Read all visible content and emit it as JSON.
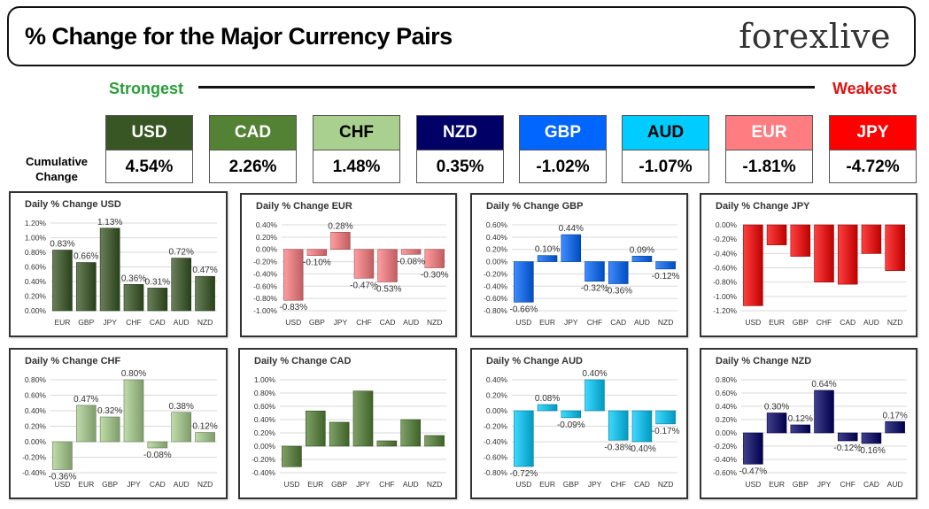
{
  "header": {
    "title": "% Change for the Major Currency Pairs",
    "logo": "forexlive"
  },
  "ranking": {
    "strongest_label": "Strongest",
    "weakest_label": "Weakest",
    "cumulative_label_line1": "Cumulative",
    "cumulative_label_line2": "Change",
    "cards": [
      {
        "currency": "USD",
        "value": "4.54%",
        "bg": "#375623",
        "fg": "#ffffff"
      },
      {
        "currency": "CAD",
        "value": "2.26%",
        "bg": "#548235",
        "fg": "#ffffff"
      },
      {
        "currency": "CHF",
        "value": "1.48%",
        "bg": "#a9d08e",
        "fg": "#000000"
      },
      {
        "currency": "NZD",
        "value": "0.35%",
        "bg": "#000066",
        "fg": "#ffffff"
      },
      {
        "currency": "GBP",
        "value": "-1.02%",
        "bg": "#0066ff",
        "fg": "#ffffff"
      },
      {
        "currency": "AUD",
        "value": "-1.07%",
        "bg": "#00ccff",
        "fg": "#000000"
      },
      {
        "currency": "EUR",
        "value": "-1.81%",
        "bg": "#ff7c80",
        "fg": "#ffffff"
      },
      {
        "currency": "JPY",
        "value": "-4.72%",
        "bg": "#ff0000",
        "fg": "#ffffff"
      }
    ]
  },
  "chart_data": [
    {
      "type": "bar",
      "title": "Daily % Change USD",
      "categories": [
        "EUR",
        "GBP",
        "JPY",
        "CHF",
        "CAD",
        "AUD",
        "NZD"
      ],
      "values": [
        0.83,
        0.66,
        1.13,
        0.36,
        0.31,
        0.72,
        0.47
      ],
      "labels": [
        "0.83%",
        "0.66%",
        "1.13%",
        "0.36%",
        "0.31%",
        "0.72%",
        "0.47%"
      ],
      "ylim": [
        0,
        1.2
      ],
      "yticks": [
        "0.00%",
        "0.20%",
        "0.40%",
        "0.60%",
        "0.80%",
        "1.00%",
        "1.20%"
      ],
      "color": "#375623"
    },
    {
      "type": "bar",
      "title": "Daily % Change EUR",
      "categories": [
        "USD",
        "GBP",
        "JPY",
        "CHF",
        "CAD",
        "AUD",
        "NZD"
      ],
      "values": [
        -0.83,
        -0.1,
        0.28,
        -0.47,
        -0.53,
        -0.08,
        -0.3
      ],
      "labels": [
        "-0.83%",
        "-0.10%",
        "0.28%",
        "-0.47%",
        "-0.53%",
        "-0.08%",
        "-0.30%"
      ],
      "ylim": [
        -1.0,
        0.4
      ],
      "yticks": [
        "-1.00%",
        "-0.80%",
        "-0.60%",
        "-0.40%",
        "-0.20%",
        "0.00%",
        "0.20%",
        "0.40%"
      ],
      "color": "#ff7c80"
    },
    {
      "type": "bar",
      "title": "Daily % Change GBP",
      "categories": [
        "USD",
        "EUR",
        "JPY",
        "CHF",
        "CAD",
        "AUD",
        "NZD"
      ],
      "values": [
        -0.66,
        0.1,
        0.44,
        -0.32,
        -0.36,
        0.09,
        -0.12
      ],
      "labels": [
        "-0.66%",
        "0.10%",
        "0.44%",
        "-0.32%",
        "-0.36%",
        "0.09%",
        "-0.12%"
      ],
      "ylim": [
        -0.8,
        0.6
      ],
      "yticks": [
        "-0.80%",
        "-0.60%",
        "-0.40%",
        "-0.20%",
        "0.00%",
        "0.20%",
        "0.40%",
        "0.60%"
      ],
      "color": "#0066ff"
    },
    {
      "type": "bar",
      "title": "Daily % Change JPY",
      "categories": [
        "USD",
        "EUR",
        "GBP",
        "CHF",
        "CAD",
        "AUD",
        "NZD"
      ],
      "values": [
        -1.13,
        -0.28,
        -0.44,
        -0.8,
        -0.83,
        -0.4,
        -0.64
      ],
      "labels": [],
      "ylim": [
        -1.2,
        0
      ],
      "yticks": [
        "-1.20%",
        "-1.00%",
        "-0.80%",
        "-0.60%",
        "-0.40%",
        "-0.20%",
        "0.00%"
      ],
      "color": "#ff0000"
    },
    {
      "type": "bar",
      "title": "Daily % Change CHF",
      "categories": [
        "USD",
        "EUR",
        "GBP",
        "JPY",
        "CAD",
        "AUD",
        "NZD"
      ],
      "values": [
        -0.36,
        0.47,
        0.32,
        0.8,
        -0.08,
        0.38,
        0.12
      ],
      "labels": [
        "-0.36%",
        "0.47%",
        "0.32%",
        "0.80%",
        "-0.08%",
        "0.38%",
        "0.12%"
      ],
      "ylim": [
        -0.4,
        0.8
      ],
      "yticks": [
        "-0.40%",
        "-0.20%",
        "0.00%",
        "0.20%",
        "0.40%",
        "0.60%",
        "0.80%"
      ],
      "color": "#a9d08e"
    },
    {
      "type": "bar",
      "title": "Daily % Change CAD",
      "categories": [
        "USD",
        "EUR",
        "GBP",
        "JPY",
        "CHF",
        "AUD",
        "NZD"
      ],
      "values": [
        -0.31,
        0.53,
        0.36,
        0.83,
        0.08,
        0.4,
        0.16
      ],
      "labels": [],
      "ylim": [
        -0.4,
        1.0
      ],
      "yticks": [
        "-0.40%",
        "-0.20%",
        "0.00%",
        "0.20%",
        "0.40%",
        "0.60%",
        "0.80%",
        "1.00%"
      ],
      "color": "#548235"
    },
    {
      "type": "bar",
      "title": "Daily % Change AUD",
      "categories": [
        "USD",
        "EUR",
        "GBP",
        "JPY",
        "CHF",
        "CAD",
        "NZD"
      ],
      "values": [
        -0.72,
        0.08,
        -0.09,
        0.4,
        -0.38,
        -0.4,
        -0.17
      ],
      "labels": [
        "-0.72%",
        "0.08%",
        "-0.09%",
        "0.40%",
        "-0.38%",
        "-0.40%",
        "-0.17%"
      ],
      "ylim": [
        -0.8,
        0.4
      ],
      "yticks": [
        "-0.80%",
        "-0.60%",
        "-0.40%",
        "-0.20%",
        "0.00%",
        "0.20%",
        "0.40%"
      ],
      "color": "#00ccff"
    },
    {
      "type": "bar",
      "title": "Daily % Change NZD",
      "categories": [
        "USD",
        "EUR",
        "GBP",
        "JPY",
        "CHF",
        "CAD",
        "AUD"
      ],
      "values": [
        -0.47,
        0.3,
        0.12,
        0.64,
        -0.12,
        -0.16,
        0.17
      ],
      "labels": [
        "-0.47%",
        "0.30%",
        "0.12%",
        "0.64%",
        "-0.12%",
        "-0.16%",
        "0.17%"
      ],
      "ylim": [
        -0.6,
        0.8
      ],
      "yticks": [
        "-0.60%",
        "-0.40%",
        "-0.20%",
        "0.00%",
        "0.20%",
        "0.40%",
        "0.60%",
        "0.80%"
      ],
      "color": "#000066"
    }
  ]
}
